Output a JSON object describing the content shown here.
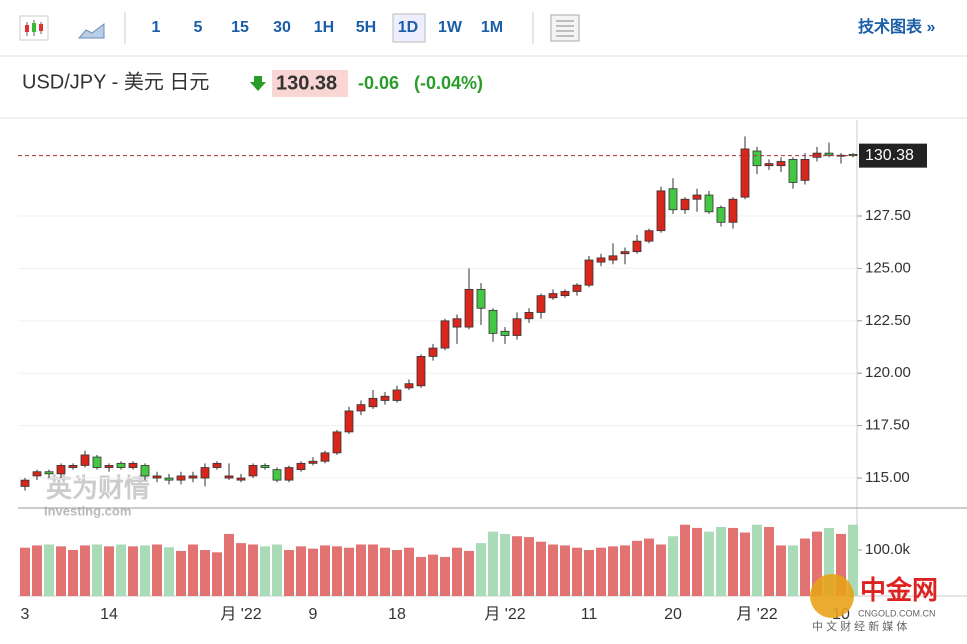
{
  "toolbar": {
    "intervals": [
      "1",
      "5",
      "15",
      "30",
      "1H",
      "5H",
      "1D",
      "1W",
      "1M"
    ],
    "tech_chart": "技术图表 »"
  },
  "header": {
    "symbol": "USD/JPY - 美元 日元",
    "change": "-0.06",
    "change_pct": "(-0.04%)"
  },
  "watermark": {
    "brand": "英为财情",
    "site": "Investing.com",
    "logo": "中金网",
    "logo_url": "CNGOLD.COM.CN",
    "logo_tagline": "中 文 财 经 新 媒 体"
  },
  "chart_data": {
    "type": "candlestick",
    "categories": [
      "3",
      null,
      null,
      null,
      null,
      null,
      null,
      "14",
      null,
      null,
      null,
      null,
      null,
      null,
      null,
      null,
      null,
      null,
      "月 '22",
      null,
      null,
      null,
      null,
      null,
      "9",
      null,
      null,
      null,
      null,
      null,
      null,
      "18",
      null,
      null,
      null,
      null,
      null,
      null,
      null,
      null,
      "月 '22",
      null,
      null,
      null,
      null,
      null,
      null,
      "11",
      null,
      null,
      null,
      null,
      null,
      null,
      "20",
      null,
      null,
      null,
      null,
      null,
      null,
      "月 '22",
      null,
      null,
      null,
      null,
      null,
      null,
      "10",
      null
    ],
    "open": [
      114.6,
      115.1,
      115.3,
      115.2,
      115.5,
      115.6,
      116.0,
      115.5,
      115.7,
      115.5,
      115.6,
      115.0,
      115.0,
      114.9,
      115.0,
      115.0,
      115.5,
      115.0,
      114.9,
      115.1,
      115.6,
      115.4,
      114.9,
      115.4,
      115.7,
      115.8,
      116.2,
      117.2,
      118.2,
      118.4,
      118.7,
      118.7,
      119.3,
      119.4,
      120.8,
      121.2,
      122.2,
      122.2,
      124.0,
      123.0,
      122.0,
      121.8,
      122.6,
      122.9,
      123.6,
      123.7,
      123.9,
      124.2,
      125.3,
      125.4,
      125.7,
      125.8,
      126.3,
      126.8,
      128.8,
      127.8,
      128.3,
      128.5,
      127.9,
      127.2,
      128.4,
      130.6,
      129.9,
      129.9,
      130.2,
      129.2,
      130.3,
      130.5,
      130.4,
      130.44
    ],
    "high": [
      115.0,
      115.4,
      115.4,
      115.7,
      115.7,
      116.3,
      116.1,
      115.7,
      115.8,
      115.8,
      115.7,
      115.3,
      115.2,
      115.3,
      115.3,
      115.7,
      115.8,
      115.7,
      115.2,
      115.7,
      115.7,
      115.5,
      115.6,
      115.8,
      116.0,
      116.3,
      117.3,
      118.4,
      118.7,
      119.2,
      119.1,
      119.4,
      119.7,
      120.9,
      121.4,
      122.6,
      122.8,
      125.0,
      124.3,
      123.1,
      122.2,
      122.9,
      123.1,
      123.8,
      124.0,
      124.0,
      124.3,
      125.6,
      125.7,
      126.2,
      126.0,
      126.6,
      126.9,
      128.9,
      129.3,
      128.4,
      128.8,
      128.7,
      128.0,
      128.4,
      131.3,
      130.8,
      130.2,
      130.3,
      130.3,
      130.5,
      130.8,
      131.0,
      130.5,
      130.5
    ],
    "low": [
      114.4,
      114.9,
      115.0,
      115.0,
      115.4,
      115.5,
      115.4,
      115.3,
      115.4,
      115.4,
      114.9,
      114.8,
      114.7,
      114.7,
      114.8,
      114.6,
      115.4,
      114.9,
      114.8,
      115.0,
      115.4,
      114.8,
      114.8,
      115.3,
      115.6,
      115.7,
      116.1,
      117.1,
      118.0,
      118.3,
      118.5,
      118.6,
      119.2,
      119.3,
      120.6,
      121.1,
      121.4,
      122.1,
      122.3,
      121.5,
      121.4,
      121.6,
      122.4,
      122.6,
      123.5,
      123.6,
      123.7,
      124.1,
      125.1,
      125.2,
      125.2,
      125.7,
      126.2,
      126.7,
      127.6,
      127.6,
      127.7,
      127.6,
      127.0,
      126.9,
      128.3,
      129.5,
      129.7,
      129.6,
      128.8,
      129.0,
      130.1,
      130.3,
      130.0,
      130.3
    ],
    "close": [
      114.9,
      115.3,
      115.2,
      115.6,
      115.6,
      116.1,
      115.5,
      115.6,
      115.5,
      115.7,
      115.1,
      115.1,
      114.9,
      115.1,
      115.1,
      115.5,
      115.7,
      115.1,
      115.0,
      115.6,
      115.5,
      114.9,
      115.5,
      115.7,
      115.8,
      116.2,
      117.2,
      118.2,
      118.5,
      118.8,
      118.9,
      119.2,
      119.5,
      120.8,
      121.2,
      122.5,
      122.6,
      124.0,
      123.1,
      121.9,
      121.8,
      122.6,
      122.9,
      123.7,
      123.8,
      123.9,
      124.2,
      125.4,
      125.5,
      125.6,
      125.8,
      126.3,
      126.8,
      128.7,
      127.8,
      128.3,
      128.5,
      127.7,
      127.2,
      128.3,
      130.7,
      129.9,
      130.0,
      130.1,
      129.1,
      130.2,
      130.5,
      130.4,
      130.4,
      130.38
    ],
    "volume": [
      105000,
      110000,
      112000,
      108000,
      100000,
      110000,
      112000,
      108000,
      112000,
      108000,
      110000,
      112000,
      106000,
      98000,
      112000,
      100000,
      95000,
      135000,
      115000,
      112000,
      108000,
      112000,
      100000,
      108000,
      103000,
      110000,
      108000,
      105000,
      112000,
      112000,
      105000,
      100000,
      105000,
      85000,
      90000,
      85000,
      105000,
      98000,
      115000,
      140000,
      135000,
      130000,
      128000,
      118000,
      112000,
      110000,
      105000,
      100000,
      105000,
      108000,
      110000,
      120000,
      125000,
      112000,
      130000,
      155000,
      148000,
      140000,
      150000,
      148000,
      138000,
      155000,
      150000,
      110000,
      110000,
      125000,
      140000,
      148000,
      135000,
      155000
    ],
    "ylim": [
      113.57,
      132.08
    ],
    "yticks": [
      {
        "value": 115,
        "label": "115.00"
      },
      {
        "value": 117.5,
        "label": "117.50"
      },
      {
        "value": 120,
        "label": "120.00"
      },
      {
        "value": 122.5,
        "label": "122.50"
      },
      {
        "value": 125,
        "label": "125.00"
      },
      {
        "value": 127.5,
        "label": "127.50"
      }
    ],
    "volume_ylim": [
      0,
      187000
    ],
    "volume_ticks": [
      {
        "value": 100000,
        "label": "100.0k"
      }
    ],
    "last_price": 130.38,
    "up_color": "#d9261c",
    "down_color": "#44c844",
    "volume_up_color": "#e27373",
    "volume_down_color": "#a9dcb6",
    "grid": true
  }
}
